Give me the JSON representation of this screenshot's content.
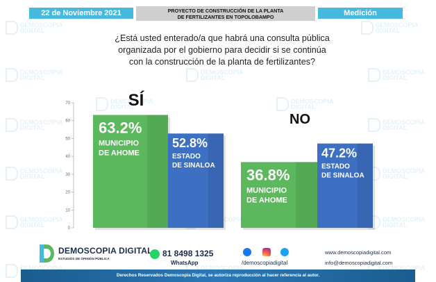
{
  "header": {
    "date": "22 de Noviembre 2021",
    "title_lines": [
      "PROYECTO DE CONSTRUCCIÓN DE LA PLANTA",
      "DE FERTILIZANTES EN TOPOLOBAMPO"
    ],
    "section": "Medición"
  },
  "question_lines": [
    "¿Está usted enterado/a que habrá una consulta pública",
    "organizada por el gobierno para decidir si se continúa",
    "con la construcción de la planta de fertilizantes?"
  ],
  "watermark": {
    "line1": "DEMOSCOPIA",
    "line2": "DIGITAL"
  },
  "chart_data": {
    "type": "bar",
    "categories": [
      "SÍ",
      "NO"
    ],
    "series": [
      {
        "name": "MUNICIPIO DE AHOME",
        "name_lines": [
          "MUNICIPIO",
          "DE AHOME"
        ],
        "values": [
          63.2,
          36.8
        ],
        "value_labels": [
          "63.2%",
          "36.8%"
        ],
        "color": "#5cb85c"
      },
      {
        "name": "ESTADO DE SINALOA",
        "name_lines": [
          "ESTADO",
          "DE SINALOA"
        ],
        "values": [
          52.8,
          47.2
        ],
        "value_labels": [
          "52.8%",
          "47.2%"
        ],
        "color": "#3d6fc2"
      }
    ],
    "ylim": [
      0,
      70
    ],
    "yticks": [
      0,
      10,
      20,
      30,
      40,
      50,
      60,
      70
    ],
    "grid": false,
    "legend": "none"
  },
  "footer": {
    "brand_name": "DEMOSCOPIA DIGITAL",
    "brand_name_lines": [
      "DEMOSCOPIA",
      "DIGITAL"
    ],
    "brand_tagline": "ESTUDIOS DE OPINIÓN PÚBLICA",
    "whatsapp_number": "81 8498 1325",
    "whatsapp_label": "WhatsApp",
    "social_handle": "/demoscopiadigital",
    "website": "www.demoscopiadigital.com",
    "email": "info@demoscopiadigital.com",
    "rights": "Derechos Reservados Demoscopia Digital, se autoriza reproducción al hacer referencia al autor."
  },
  "colors": {
    "accent": "#45b9de",
    "green_bar": "#5cb85c",
    "blue_bar": "#3d6fc2",
    "footer_band": "#2a78b8",
    "title_gray": "#cfcfcf"
  }
}
